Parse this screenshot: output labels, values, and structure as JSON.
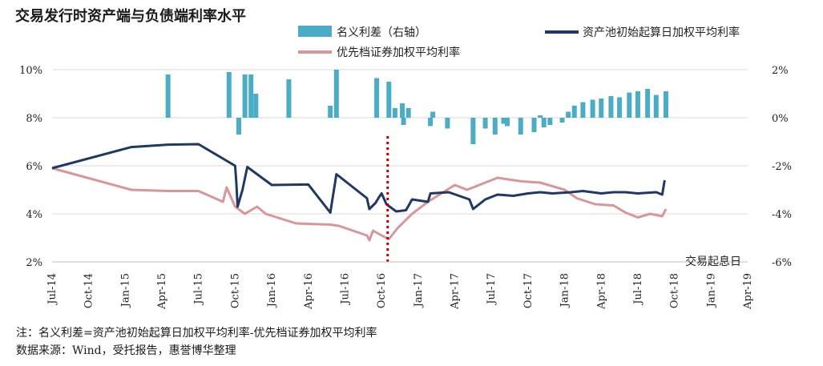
{
  "title": "交易发行时资产端与负债端利率水平",
  "note_line1": "注：名义利差=资产池初始起算日加权平均利率-优先档证券加权平均利率",
  "note_line2": "数据来源：Wind，受托报告，惠誉博华整理",
  "chart_data": {
    "type": "line+bar",
    "title": "交易发行时资产端与负债端利率水平",
    "x_label": "交易起息日",
    "x_ticks": [
      "Jul-14",
      "Oct-14",
      "Jan-15",
      "Apr-15",
      "Jul-15",
      "Oct-15",
      "Jan-16",
      "Apr-16",
      "Jul-16",
      "Oct-16",
      "Jan-17",
      "Apr-17",
      "Jul-17",
      "Oct-17",
      "Jan-18",
      "Apr-18",
      "Jul-18",
      "Oct-18",
      "Jan-19",
      "Apr-19"
    ],
    "y_left": {
      "min": 2,
      "max": 10,
      "ticks": [
        "2%",
        "4%",
        "6%",
        "8%",
        "10%"
      ]
    },
    "y_right": {
      "min": -6,
      "max": 2,
      "ticks": [
        "-6%",
        "-4%",
        "-2%",
        "0%",
        "2%"
      ]
    },
    "legend": [
      "名义利差（右轴）",
      "资产池初始起算日加权平均利率",
      "优先档证券加权平均利率"
    ],
    "colors": {
      "bar": "#4bacc6",
      "asset": "#1f3864",
      "liability": "#d9969a",
      "marker": "#c00000"
    },
    "marker_date": 27.5,
    "series": [
      {
        "name": "名义利差（右轴）",
        "axis": "right",
        "kind": "bar",
        "points": [
          [
            9.5,
            1.8
          ],
          [
            14.5,
            1.9
          ],
          [
            15.3,
            -0.7
          ],
          [
            15.8,
            1.8
          ],
          [
            16.3,
            1.8
          ],
          [
            16.7,
            1.0
          ],
          [
            19.4,
            1.6
          ],
          [
            22.8,
            0.5
          ],
          [
            23.3,
            2.0
          ],
          [
            26.6,
            1.65
          ],
          [
            27.6,
            1.5
          ],
          [
            28.1,
            0.4
          ],
          [
            28.7,
            0.6
          ],
          [
            29.2,
            0.4
          ],
          [
            28.8,
            -0.3
          ],
          [
            31.2,
            0.25
          ],
          [
            31.0,
            -0.35
          ],
          [
            32.4,
            -0.45
          ],
          [
            34.5,
            -1.1
          ],
          [
            35.5,
            -0.45
          ],
          [
            36.3,
            -0.7
          ],
          [
            37.0,
            -0.25
          ],
          [
            37.3,
            -0.35
          ],
          [
            38.4,
            -0.7
          ],
          [
            39.5,
            -0.6
          ],
          [
            40.0,
            0.1
          ],
          [
            40.3,
            -0.4
          ],
          [
            40.8,
            -0.3
          ],
          [
            41.3,
            0.0
          ],
          [
            41.8,
            -0.2
          ],
          [
            42.3,
            0.25
          ],
          [
            42.8,
            0.5
          ],
          [
            43.5,
            0.65
          ],
          [
            44.3,
            0.75
          ],
          [
            45.0,
            0.8
          ],
          [
            45.8,
            0.9
          ],
          [
            46.5,
            0.85
          ],
          [
            47.3,
            1.05
          ],
          [
            48.0,
            1.1
          ],
          [
            48.8,
            1.2
          ],
          [
            49.5,
            0.95
          ],
          [
            50.3,
            1.1
          ]
        ]
      },
      {
        "name": "资产池初始起算日加权平均利率",
        "axis": "left",
        "kind": "line",
        "points": [
          [
            0,
            5.9
          ],
          [
            6.5,
            6.78
          ],
          [
            9.5,
            6.88
          ],
          [
            12.0,
            6.9
          ],
          [
            15.0,
            6.0
          ],
          [
            15.1,
            5.3
          ],
          [
            15.2,
            4.3
          ],
          [
            15.6,
            5.0
          ],
          [
            16.0,
            5.95
          ],
          [
            16.8,
            5.65
          ],
          [
            18.0,
            5.2
          ],
          [
            21.0,
            5.22
          ],
          [
            22.8,
            4.05
          ],
          [
            23.3,
            5.65
          ],
          [
            25.8,
            4.65
          ],
          [
            26.0,
            4.2
          ],
          [
            26.5,
            4.45
          ],
          [
            26.8,
            4.7
          ],
          [
            27.0,
            4.85
          ],
          [
            27.4,
            4.4
          ],
          [
            28.2,
            4.1
          ],
          [
            29.0,
            4.15
          ],
          [
            29.5,
            4.6
          ],
          [
            30.8,
            4.5
          ],
          [
            31.0,
            4.85
          ],
          [
            32.5,
            4.9
          ],
          [
            34.2,
            4.6
          ],
          [
            34.5,
            4.2
          ],
          [
            35.5,
            4.6
          ],
          [
            36.5,
            4.8
          ],
          [
            37.8,
            4.75
          ],
          [
            39.0,
            4.85
          ],
          [
            40.0,
            4.9
          ],
          [
            41.0,
            4.85
          ],
          [
            42.5,
            4.9
          ],
          [
            43.5,
            4.95
          ],
          [
            45.0,
            4.85
          ],
          [
            46.0,
            4.9
          ],
          [
            47.0,
            4.9
          ],
          [
            48.0,
            4.85
          ],
          [
            49.5,
            4.9
          ],
          [
            50.0,
            4.8
          ],
          [
            50.2,
            5.4
          ]
        ]
      },
      {
        "name": "优先档证券加权平均利率",
        "axis": "left",
        "kind": "line",
        "points": [
          [
            0,
            5.9
          ],
          [
            6.5,
            5.0
          ],
          [
            9.5,
            4.95
          ],
          [
            12.0,
            4.95
          ],
          [
            14.0,
            4.5
          ],
          [
            14.3,
            5.1
          ],
          [
            15.0,
            4.3
          ],
          [
            15.8,
            4.0
          ],
          [
            16.8,
            4.3
          ],
          [
            17.5,
            4.0
          ],
          [
            20.0,
            3.6
          ],
          [
            22.8,
            3.55
          ],
          [
            23.5,
            3.5
          ],
          [
            25.8,
            3.1
          ],
          [
            26.0,
            2.9
          ],
          [
            26.3,
            3.3
          ],
          [
            27.0,
            3.1
          ],
          [
            27.6,
            2.95
          ],
          [
            28.3,
            3.4
          ],
          [
            29.5,
            4.0
          ],
          [
            30.8,
            4.5
          ],
          [
            33.0,
            5.2
          ],
          [
            34.0,
            5.0
          ],
          [
            35.5,
            5.3
          ],
          [
            36.5,
            5.5
          ],
          [
            38.5,
            5.35
          ],
          [
            40.0,
            5.3
          ],
          [
            41.0,
            5.15
          ],
          [
            42.0,
            5.0
          ],
          [
            43.0,
            4.65
          ],
          [
            44.5,
            4.4
          ],
          [
            46.0,
            4.35
          ],
          [
            47.0,
            4.05
          ],
          [
            48.0,
            3.85
          ],
          [
            49.0,
            4.0
          ],
          [
            50.0,
            3.9
          ],
          [
            50.3,
            4.2
          ]
        ]
      }
    ]
  }
}
